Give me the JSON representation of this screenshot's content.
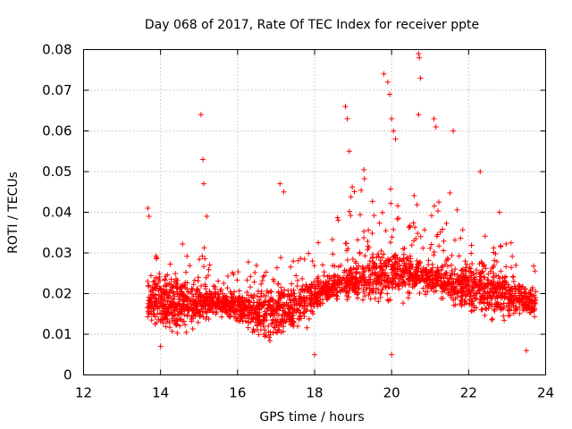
{
  "chart_data": {
    "type": "scatter",
    "title": "Day 068 of 2017, Rate Of TEC Index for receiver ppte",
    "xlabel": "GPS time / hours",
    "ylabel": "ROTI / TECUs",
    "xlim": [
      12,
      24
    ],
    "ylim": [
      0,
      0.08
    ],
    "xticks": [
      12,
      14,
      16,
      18,
      20,
      22,
      24
    ],
    "yticks": [
      0,
      0.01,
      0.02,
      0.03,
      0.04,
      0.05,
      0.06,
      0.07,
      0.08
    ],
    "xtick_labels": [
      "12",
      "14",
      "16",
      "18",
      "20",
      "22",
      "24"
    ],
    "ytick_labels": [
      "0",
      "0.01",
      "0.02",
      "0.03",
      "0.04",
      "0.05",
      "0.06",
      "0.07",
      "0.08"
    ],
    "grid": true,
    "marker": "+",
    "color": "#ff0000",
    "series": [
      {
        "name": "ROTI",
        "x_range": [
          13.65,
          23.75
        ],
        "baseline_profile": [
          [
            13.65,
            0.019
          ],
          [
            14.5,
            0.017
          ],
          [
            15.5,
            0.018
          ],
          [
            16.5,
            0.015
          ],
          [
            17.5,
            0.017
          ],
          [
            18.5,
            0.022
          ],
          [
            19.5,
            0.024
          ],
          [
            20.5,
            0.025
          ],
          [
            21.5,
            0.022
          ],
          [
            22.5,
            0.021
          ],
          [
            23.75,
            0.018
          ]
        ],
        "sample_count": 2600,
        "notable_points": [
          {
            "x": 13.67,
            "y": 0.041
          },
          {
            "x": 13.7,
            "y": 0.039
          },
          {
            "x": 15.05,
            "y": 0.064
          },
          {
            "x": 15.1,
            "y": 0.053
          },
          {
            "x": 15.12,
            "y": 0.047
          },
          {
            "x": 15.2,
            "y": 0.039
          },
          {
            "x": 17.1,
            "y": 0.047
          },
          {
            "x": 17.2,
            "y": 0.045
          },
          {
            "x": 18.8,
            "y": 0.066
          },
          {
            "x": 18.85,
            "y": 0.063
          },
          {
            "x": 18.9,
            "y": 0.055
          },
          {
            "x": 19.8,
            "y": 0.074
          },
          {
            "x": 19.9,
            "y": 0.072
          },
          {
            "x": 19.95,
            "y": 0.069
          },
          {
            "x": 20.0,
            "y": 0.063
          },
          {
            "x": 20.05,
            "y": 0.06
          },
          {
            "x": 20.1,
            "y": 0.058
          },
          {
            "x": 20.7,
            "y": 0.079
          },
          {
            "x": 20.72,
            "y": 0.078
          },
          {
            "x": 20.75,
            "y": 0.073
          },
          {
            "x": 20.7,
            "y": 0.064
          },
          {
            "x": 21.1,
            "y": 0.063
          },
          {
            "x": 21.15,
            "y": 0.061
          },
          {
            "x": 21.6,
            "y": 0.06
          },
          {
            "x": 22.3,
            "y": 0.05
          },
          {
            "x": 22.8,
            "y": 0.04
          },
          {
            "x": 20.0,
            "y": 0.005
          },
          {
            "x": 18.0,
            "y": 0.005
          },
          {
            "x": 14.0,
            "y": 0.007
          },
          {
            "x": 23.5,
            "y": 0.006
          }
        ]
      }
    ]
  }
}
